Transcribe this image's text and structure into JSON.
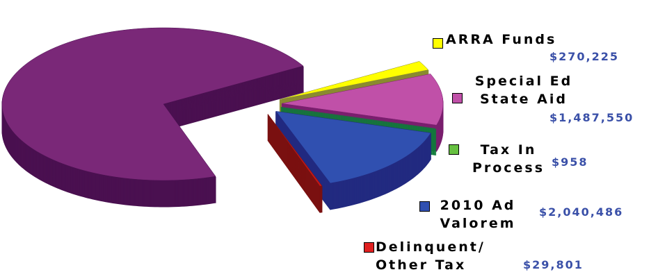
{
  "chart_data": {
    "type": "pie3d",
    "categories": [
      "ARRA Funds",
      "Special Ed State Aid",
      "Tax In Process",
      "2010 Ad Valorem",
      "Delinquent/ Other Tax",
      null
    ],
    "values": [
      270225,
      1487550,
      958,
      2040486,
      29801,
      9800000
    ],
    "value_labels": [
      "$270,225",
      "$1,487,550",
      "$958",
      "$2,040,486",
      "$29,801",
      null
    ],
    "colors": [
      "#ffff00",
      "#c050a8",
      "#1f9a48",
      "#3050b0",
      "#c01818",
      "#7a2878"
    ],
    "side_colors": [
      "#8a8a30",
      "#7a1f6e",
      "#0f7a3a",
      "#222a80",
      "#7a1010",
      "#4a1050"
    ],
    "legend_colors": [
      "#ffff00",
      "#c050a8",
      "#66c040",
      "#3050b0",
      "#e02020",
      "#7a2878"
    ]
  }
}
